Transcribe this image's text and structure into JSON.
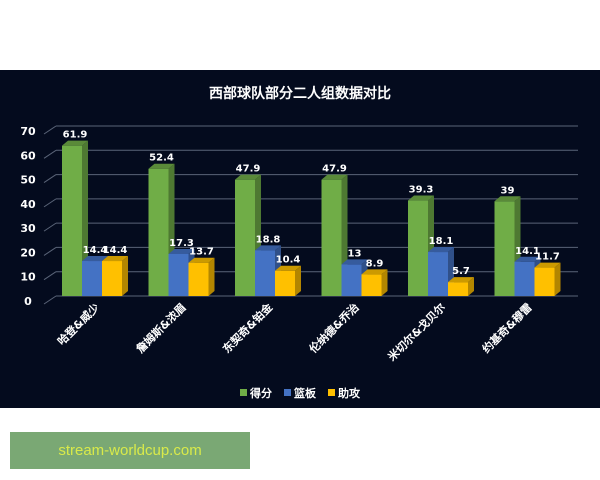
{
  "chart_data": {
    "type": "bar",
    "title": "西部球队部分二人组数据对比",
    "categories": [
      "哈登&威少",
      "詹姆斯&浓眉",
      "东契奇&铂金",
      "伦纳德&乔治",
      "米切尔&戈贝尔",
      "约基奇&穆雷"
    ],
    "series": [
      {
        "name": "得分",
        "color": "#70ad47",
        "values": [
          61.9,
          52.4,
          47.9,
          47.9,
          39.3,
          39
        ]
      },
      {
        "name": "篮板",
        "color": "#4472c4",
        "values": [
          14.4,
          17.3,
          18.8,
          13,
          18.1,
          14.1
        ]
      },
      {
        "name": "助攻",
        "color": "#ffc000",
        "values": [
          14.4,
          13.7,
          10.4,
          8.9,
          5.7,
          11.7
        ]
      }
    ],
    "ylim": [
      0,
      70
    ],
    "yticks": [
      "0",
      "10",
      "20",
      "30",
      "40",
      "50",
      "60",
      "70"
    ],
    "grid": true,
    "legend": "bottom",
    "xlabel": "",
    "ylabel": ""
  },
  "watermark": "stream-worldcup.com"
}
